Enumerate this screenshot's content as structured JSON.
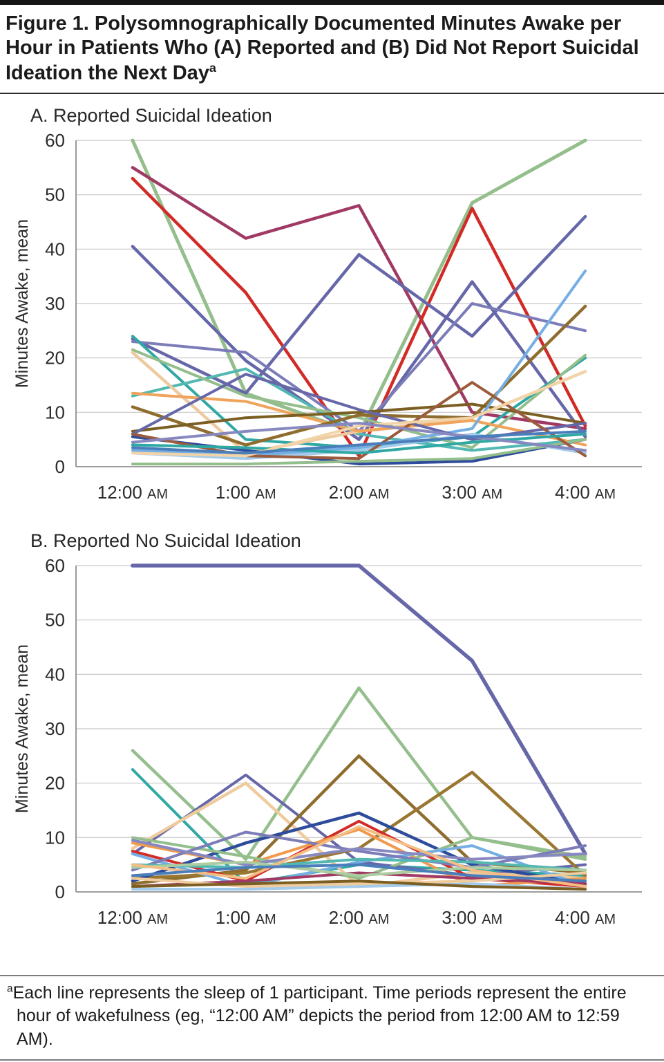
{
  "figure": {
    "title_text": "Figure 1. Polysomnographically Documented Minutes Awake per Hour in Patients Who (A) Reported and (B) Did Not Report Suicidal Ideation the Next Day",
    "title_superscript": "a",
    "footnote_superscript": "a",
    "footnote_text": "Each line represents the sleep of 1 participant. Time periods represent the entire hour of wakefulness (eg, “12:00 AM” depicts the period from 12:00 AM to 12:59 AM)."
  },
  "chart_data": [
    {
      "id": "panel-a",
      "type": "line",
      "title": "A. Reported Suicidal Ideation",
      "xlabel": "",
      "ylabel": "Minutes Awake, mean",
      "ylim": [
        0,
        60
      ],
      "ytick_step": 10,
      "grid": true,
      "legend": "none",
      "categories": [
        "12:00 AM",
        "1:00 AM",
        "2:00 AM",
        "3:00 AM",
        "4:00 AM"
      ],
      "series": [
        {
          "name": "participant-a1",
          "color": "#94BE8C",
          "width": 5,
          "values": [
            60,
            13.5,
            6,
            48.5,
            60
          ]
        },
        {
          "name": "participant-a2",
          "color": "#A03A64",
          "width": 4.5,
          "values": [
            55,
            42,
            48,
            10,
            7
          ]
        },
        {
          "name": "participant-a3",
          "color": "#D12B27",
          "width": 4.5,
          "values": [
            53,
            32,
            2,
            47.5,
            7.5
          ]
        },
        {
          "name": "participant-a4",
          "color": "#6667A9",
          "width": 4.5,
          "values": [
            40.5,
            19.5,
            5,
            34,
            5.5
          ]
        },
        {
          "name": "participant-a5",
          "color": "#6667A9",
          "width": 4.5,
          "values": [
            23.5,
            13.5,
            39,
            24,
            46
          ]
        },
        {
          "name": "participant-a6",
          "color": "#7B7CB8",
          "width": 4,
          "values": [
            23,
            21,
            6.5,
            30,
            25
          ]
        },
        {
          "name": "participant-a7",
          "color": "#2FA8A4",
          "width": 4,
          "values": [
            24,
            5,
            3.5,
            5.5,
            20
          ]
        },
        {
          "name": "participant-a8",
          "color": "#53B8B2",
          "width": 4,
          "values": [
            13,
            18,
            6,
            3,
            5
          ]
        },
        {
          "name": "participant-a9",
          "color": "#94BE8C",
          "width": 4,
          "values": [
            21.5,
            13,
            9,
            3.5,
            20.5
          ]
        },
        {
          "name": "participant-a10",
          "color": "#EDCA9F",
          "width": 4.5,
          "values": [
            21,
            2.5,
            6.5,
            9,
            17.5
          ]
        },
        {
          "name": "participant-a11",
          "color": "#F0A35B",
          "width": 4,
          "values": [
            13.5,
            12,
            6.5,
            8.5,
            4
          ]
        },
        {
          "name": "participant-a12",
          "color": "#8E6D2E",
          "width": 4.5,
          "values": [
            11,
            4,
            9.5,
            9,
            29.5
          ]
        },
        {
          "name": "participant-a13",
          "color": "#7A5E22",
          "width": 4,
          "values": [
            6.5,
            9,
            10,
            11.5,
            8
          ]
        },
        {
          "name": "participant-a14",
          "color": "#2E4C9C",
          "width": 4,
          "values": [
            5.5,
            3,
            0.5,
            1,
            5
          ]
        },
        {
          "name": "participant-a15",
          "color": "#74AEE2",
          "width": 4,
          "values": [
            3,
            2,
            3.5,
            7,
            36
          ]
        },
        {
          "name": "participant-a16",
          "color": "#A3CBEC",
          "width": 4,
          "values": [
            2.5,
            1.5,
            3,
            6,
            2.5
          ]
        },
        {
          "name": "participant-a17",
          "color": "#6667A9",
          "width": 4,
          "values": [
            6,
            17,
            10.5,
            5,
            8
          ]
        },
        {
          "name": "participant-a18",
          "color": "#94BE8C",
          "width": 4,
          "values": [
            0.5,
            0.5,
            1,
            1.5,
            5
          ]
        },
        {
          "name": "participant-a19",
          "color": "#9B5B3C",
          "width": 4,
          "values": [
            6,
            2,
            1.5,
            15.5,
            2
          ]
        },
        {
          "name": "participant-a20",
          "color": "#2FA8A4",
          "width": 4,
          "values": [
            4,
            3.5,
            2.5,
            4.5,
            6
          ]
        },
        {
          "name": "participant-a21",
          "color": "#F2D4A8",
          "width": 4,
          "values": [
            2.5,
            2,
            7.5,
            9,
            17.5
          ]
        },
        {
          "name": "participant-a22",
          "color": "#8788BF",
          "width": 4,
          "values": [
            4.5,
            6.5,
            8,
            5.5,
            3
          ]
        },
        {
          "name": "participant-a23",
          "color": "#4A7EBB",
          "width": 4,
          "values": [
            3.5,
            2.5,
            4,
            5.5,
            6.5
          ]
        }
      ]
    },
    {
      "id": "panel-b",
      "type": "line",
      "title": "B. Reported No Suicidal Ideation",
      "xlabel": "",
      "ylabel": "Minutes Awake, mean",
      "ylim": [
        0,
        60
      ],
      "ytick_step": 10,
      "grid": true,
      "legend": "none",
      "categories": [
        "12:00 AM",
        "1:00 AM",
        "2:00 AM",
        "3:00 AM",
        "4:00 AM"
      ],
      "series": [
        {
          "name": "participant-b1",
          "color": "#6667A9",
          "width": 5.5,
          "values": [
            60,
            60,
            60,
            42.5,
            7
          ]
        },
        {
          "name": "participant-b2",
          "color": "#94BE8C",
          "width": 4.5,
          "values": [
            26,
            6,
            37.5,
            10,
            6
          ]
        },
        {
          "name": "participant-b3",
          "color": "#2FA8A4",
          "width": 4,
          "values": [
            22.5,
            1.5,
            5,
            4,
            3
          ]
        },
        {
          "name": "participant-b4",
          "color": "#6667A9",
          "width": 4,
          "values": [
            7,
            21.5,
            5.5,
            3,
            5
          ]
        },
        {
          "name": "participant-b5",
          "color": "#EFCB9E",
          "width": 4.5,
          "values": [
            8,
            20,
            1,
            3.5,
            2.5
          ]
        },
        {
          "name": "participant-b6",
          "color": "#8E6D2E",
          "width": 4.5,
          "values": [
            1.5,
            4,
            25,
            5.5,
            3.5
          ]
        },
        {
          "name": "participant-b7",
          "color": "#9A7731",
          "width": 4.5,
          "values": [
            2.5,
            3.5,
            8,
            22,
            3
          ]
        },
        {
          "name": "participant-b8",
          "color": "#2E4C9C",
          "width": 4.5,
          "values": [
            2,
            9,
            14.5,
            5,
            1.5
          ]
        },
        {
          "name": "participant-b9",
          "color": "#D12B27",
          "width": 4,
          "values": [
            7.5,
            2,
            13,
            2.5,
            1
          ]
        },
        {
          "name": "participant-b10",
          "color": "#F09A4E",
          "width": 4,
          "values": [
            9,
            5,
            11.5,
            1,
            2.5
          ]
        },
        {
          "name": "participant-b11",
          "color": "#94BE8C",
          "width": 4,
          "values": [
            10,
            6.5,
            2.5,
            10,
            6.5
          ]
        },
        {
          "name": "participant-b12",
          "color": "#74AEE2",
          "width": 4,
          "values": [
            7,
            1,
            5.5,
            8.5,
            1
          ]
        },
        {
          "name": "participant-b13",
          "color": "#7B7CB8",
          "width": 4,
          "values": [
            4,
            11,
            7.5,
            4.5,
            8.5
          ]
        },
        {
          "name": "participant-b14",
          "color": "#53B8B2",
          "width": 4,
          "values": [
            5,
            4.5,
            6,
            5.5,
            4
          ]
        },
        {
          "name": "participant-b15",
          "color": "#A03A64",
          "width": 4,
          "values": [
            1,
            2,
            3.5,
            2.5,
            1.5
          ]
        },
        {
          "name": "participant-b16",
          "color": "#A3CBEC",
          "width": 4,
          "values": [
            0.5,
            0.5,
            1,
            1.5,
            0.5
          ]
        },
        {
          "name": "participant-b17",
          "color": "#EFCB9E",
          "width": 4,
          "values": [
            2.5,
            1,
            1.5,
            2,
            3.5
          ]
        },
        {
          "name": "participant-b18",
          "color": "#7A5E22",
          "width": 4,
          "values": [
            1,
            1.5,
            2,
            1,
            0.5
          ]
        },
        {
          "name": "participant-b19",
          "color": "#8788BF",
          "width": 4,
          "values": [
            9.5,
            5,
            8,
            6,
            7
          ]
        },
        {
          "name": "participant-b20",
          "color": "#ABCDA0",
          "width": 4,
          "values": [
            4.5,
            5.5,
            3,
            4.5,
            4
          ]
        },
        {
          "name": "participant-b21",
          "color": "#F4BD85",
          "width": 4,
          "values": [
            5,
            2.5,
            12,
            4,
            1
          ]
        },
        {
          "name": "participant-b22",
          "color": "#4A7EBB",
          "width": 4,
          "values": [
            3,
            4.5,
            5,
            3,
            2
          ]
        }
      ]
    }
  ]
}
